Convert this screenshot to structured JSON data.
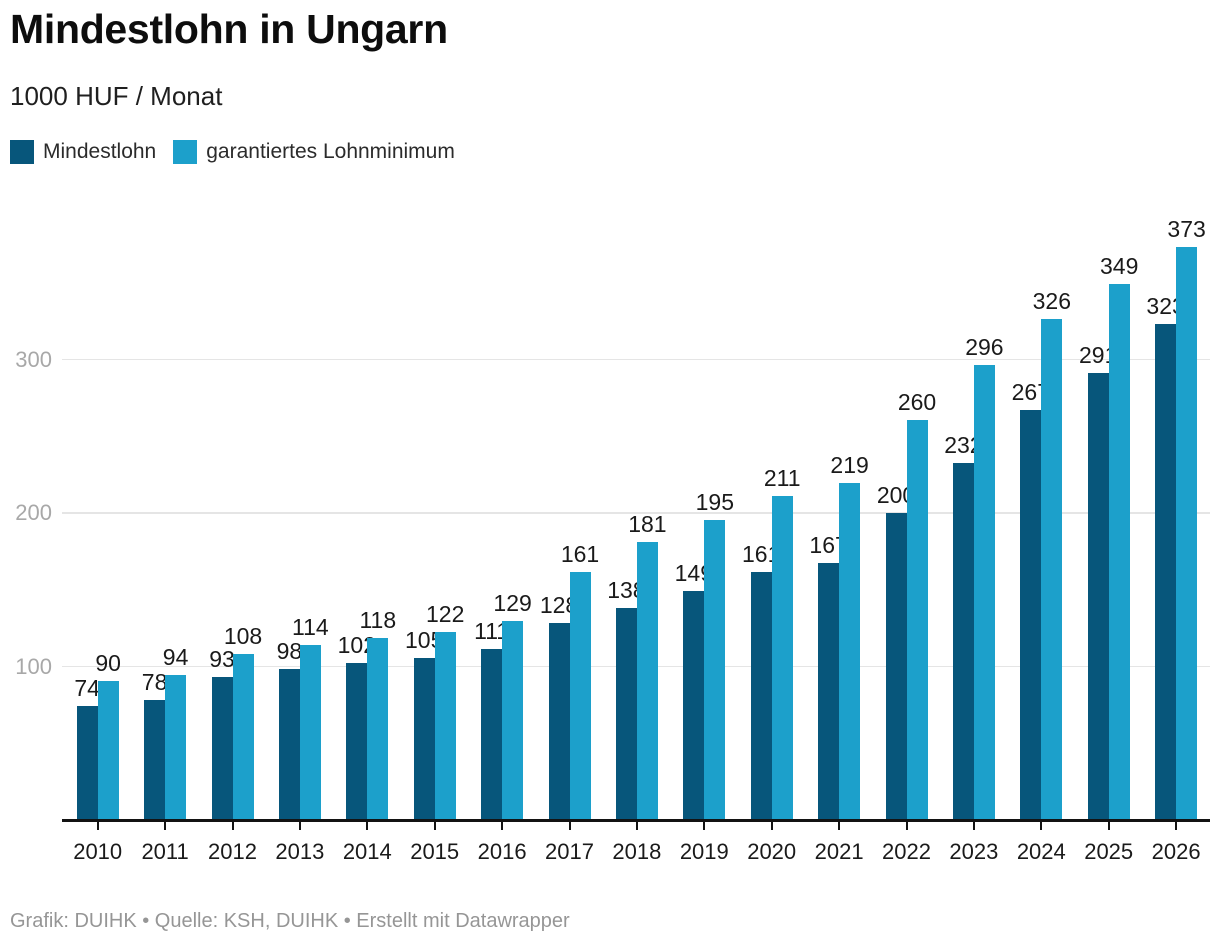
{
  "header": {
    "title": "Mindestlohn in Ungarn",
    "subtitle": "1000 HUF / Monat"
  },
  "legend": {
    "items": [
      {
        "label": "Mindestlohn",
        "color": "#07567b"
      },
      {
        "label": "garantiertes Lohnminimum",
        "color": "#1ca0cb"
      }
    ]
  },
  "footer": {
    "text": "Grafik: DUIHK • Quelle: KSH, DUIHK • Erstellt mit Datawrapper"
  },
  "chart_data": {
    "type": "bar",
    "title": "Mindestlohn in Ungarn",
    "unit": "1000 HUF / Monat",
    "categories": [
      "2010",
      "2011",
      "2012",
      "2013",
      "2014",
      "2015",
      "2016",
      "2017",
      "2018",
      "2019",
      "2020",
      "2021",
      "2022",
      "2023",
      "2024",
      "2025",
      "2026"
    ],
    "series": [
      {
        "name": "Mindestlohn",
        "color": "#07567b",
        "values": [
          74,
          78,
          93,
          98,
          102,
          105,
          111,
          128,
          138,
          149,
          161,
          167,
          200,
          232,
          267,
          291,
          323
        ]
      },
      {
        "name": "garantiertes Lohnminimum",
        "color": "#1ca0cb",
        "values": [
          90,
          94,
          108,
          114,
          118,
          122,
          129,
          161,
          181,
          195,
          211,
          219,
          260,
          296,
          326,
          349,
          373
        ]
      }
    ],
    "xlabel": "",
    "ylabel": "",
    "y_ticks": [
      100,
      200,
      300
    ],
    "ylim": [
      0,
      390
    ],
    "grid": "horizontal-light",
    "legend_position": "top-left",
    "value_labels": true
  }
}
